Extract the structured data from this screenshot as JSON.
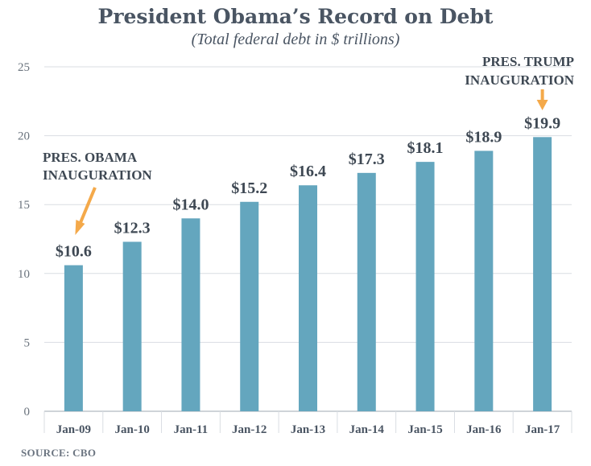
{
  "chart_data": {
    "type": "bar",
    "title": "President Obama’s Record on Debt",
    "subtitle": "(Total federal debt in $ trillions)",
    "categories": [
      "Jan-09",
      "Jan-10",
      "Jan-11",
      "Jan-12",
      "Jan-13",
      "Jan-14",
      "Jan-15",
      "Jan-16",
      "Jan-17"
    ],
    "values": [
      10.6,
      12.3,
      14.0,
      15.2,
      16.4,
      17.3,
      18.1,
      18.9,
      19.9
    ],
    "data_labels": [
      "$10.6",
      "$12.3",
      "$14.0",
      "$15.2",
      "$16.4",
      "$17.3",
      "$18.1",
      "$18.9",
      "$19.9"
    ],
    "ylim": [
      0,
      25
    ],
    "yticks": [
      0,
      5,
      10,
      15,
      20,
      25
    ],
    "xlabel": "",
    "ylabel": "",
    "grid": true,
    "legend": "none",
    "annotations": [
      {
        "lines": [
          "PRES. OBAMA",
          "INAUGURATION"
        ],
        "target_category": "Jan-09"
      },
      {
        "lines": [
          "PRES. TRUMP",
          "INAUGURATION"
        ],
        "target_category": "Jan-17"
      }
    ]
  },
  "source": "SOURCE: CBO",
  "colors": {
    "bar": "#64a6be",
    "arrow": "#f4a94a",
    "grid": "#d9dde2",
    "title": "#4a5563"
  }
}
